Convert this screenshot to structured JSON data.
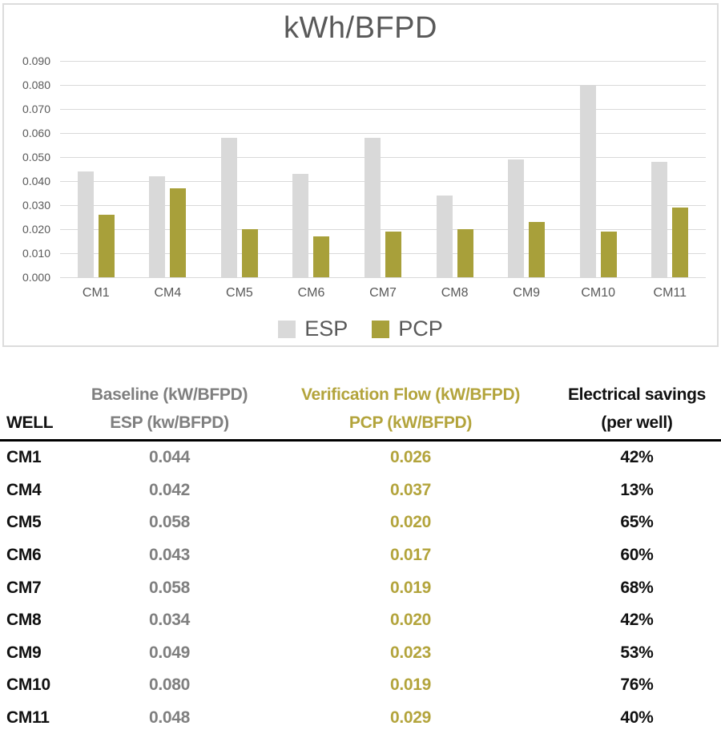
{
  "chart_data": {
    "type": "bar",
    "title": "kWh/BFPD",
    "categories": [
      "CM1",
      "CM4",
      "CM5",
      "CM6",
      "CM7",
      "CM8",
      "CM9",
      "CM10",
      "CM11"
    ],
    "series": [
      {
        "name": "ESP",
        "color": "#d9d9d9",
        "values": [
          0.044,
          0.042,
          0.058,
          0.043,
          0.058,
          0.034,
          0.049,
          0.08,
          0.048
        ]
      },
      {
        "name": "PCP",
        "color": "#a8a03a",
        "values": [
          0.026,
          0.037,
          0.02,
          0.017,
          0.019,
          0.02,
          0.023,
          0.019,
          0.029
        ]
      }
    ],
    "xlabel": "",
    "ylabel": "",
    "ylim": [
      0,
      0.09
    ],
    "ytick_step": 0.01,
    "ytick_labels": [
      "0.000",
      "0.010",
      "0.020",
      "0.030",
      "0.040",
      "0.050",
      "0.060",
      "0.070",
      "0.080",
      "0.090"
    ],
    "grid": true,
    "legend_position": "bottom",
    "title_color": "#595959",
    "axis_text_color": "#595959",
    "gridline_color": "#d9d9d9"
  },
  "table": {
    "columns": [
      {
        "id": "well",
        "line1": "",
        "line2": "WELL"
      },
      {
        "id": "esp",
        "line1": "Baseline (kW/BFPD)",
        "line2": "ESP (kw/BFPD)"
      },
      {
        "id": "pcp",
        "line1": "Verification Flow (kW/BFPD)",
        "line2": "PCP (kW/BFPD)"
      },
      {
        "id": "savings",
        "line1": "Electrical savings",
        "line2": "(per well)"
      }
    ],
    "colors": {
      "well": "#111111",
      "esp": "#7f7f7f",
      "pcp": "#b3a43c",
      "savings": "#111111"
    },
    "rows": [
      {
        "well": "CM1",
        "esp": "0.044",
        "pcp": "0.026",
        "savings": "42%"
      },
      {
        "well": "CM4",
        "esp": "0.042",
        "pcp": "0.037",
        "savings": "13%"
      },
      {
        "well": "CM5",
        "esp": "0.058",
        "pcp": "0.020",
        "savings": "65%"
      },
      {
        "well": "CM6",
        "esp": "0.043",
        "pcp": "0.017",
        "savings": "60%"
      },
      {
        "well": "CM7",
        "esp": "0.058",
        "pcp": "0.019",
        "savings": "68%"
      },
      {
        "well": "CM8",
        "esp": "0.034",
        "pcp": "0.020",
        "savings": "42%"
      },
      {
        "well": "CM9",
        "esp": "0.049",
        "pcp": "0.023",
        "savings": "53%"
      },
      {
        "well": "CM10",
        "esp": "0.080",
        "pcp": "0.019",
        "savings": "76%"
      },
      {
        "well": "CM11",
        "esp": "0.048",
        "pcp": "0.029",
        "savings": "40%"
      }
    ]
  }
}
